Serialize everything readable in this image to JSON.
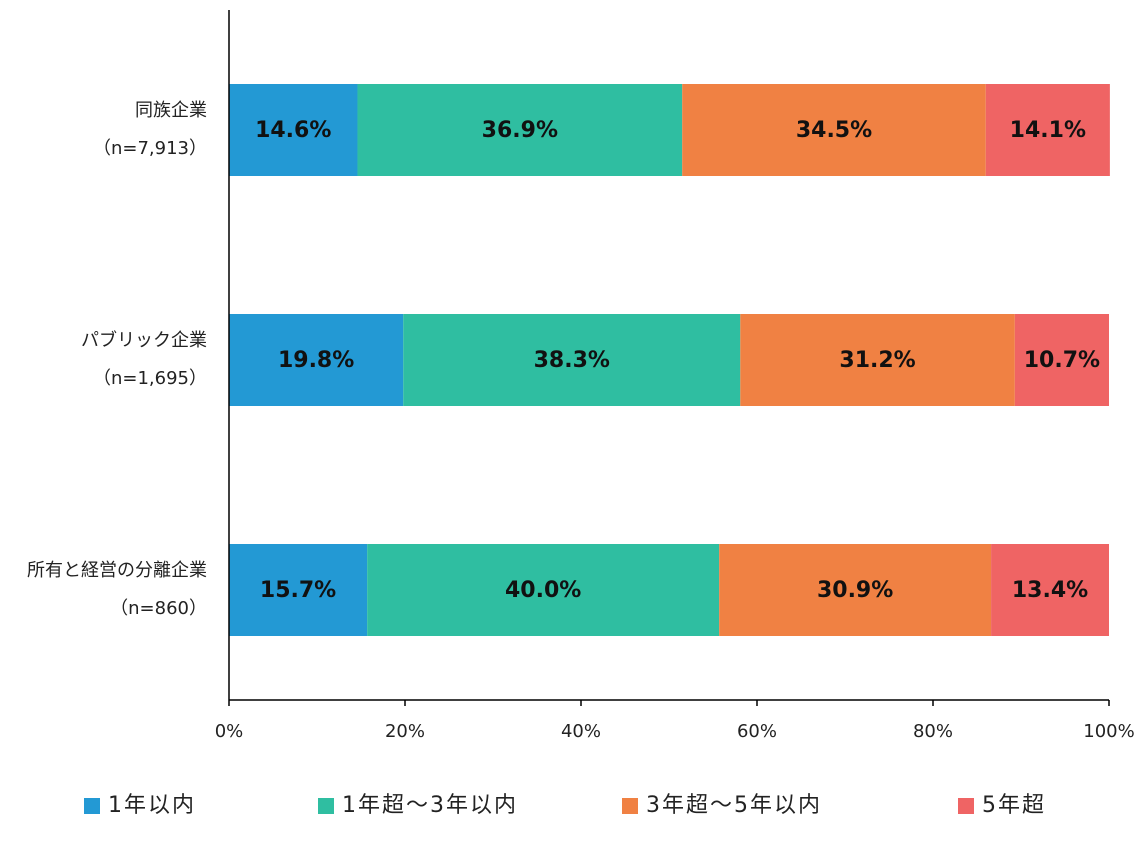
{
  "chart_data": {
    "type": "stacked-barh",
    "categories": [
      [
        "同族企業",
        "（n=7,913）"
      ],
      [
        "パブリック企業",
        "（n=1,695）"
      ],
      [
        "所有と経営の分離企業",
        "（n=860）"
      ]
    ],
    "series": [
      {
        "name": "1年以内",
        "color": "#2399d4",
        "values": [
          14.6,
          19.8,
          15.7
        ],
        "value_labels": [
          "14.6%",
          "19.8%",
          "15.7%"
        ]
      },
      {
        "name": "1年超～3年以内",
        "color": "#2fbea1",
        "values": [
          36.9,
          38.3,
          40.0
        ],
        "value_labels": [
          "36.9%",
          "38.3%",
          "40.0%"
        ]
      },
      {
        "name": "3年超～5年以内",
        "color": "#f08143",
        "values": [
          34.5,
          31.2,
          30.9
        ],
        "value_labels": [
          "34.5%",
          "31.2%",
          "30.9%"
        ]
      },
      {
        "name": "5年超",
        "color": "#ef6464",
        "values": [
          14.1,
          10.7,
          13.4
        ],
        "value_labels": [
          "14.1%",
          "10.7%",
          "13.4%"
        ]
      }
    ],
    "xlim": [
      0,
      100
    ],
    "xticks": [
      {
        "value": 0,
        "label": "0%"
      },
      {
        "value": 20,
        "label": "20%"
      },
      {
        "value": 40,
        "label": "40%"
      },
      {
        "value": 60,
        "label": "60%"
      },
      {
        "value": 80,
        "label": "80%"
      },
      {
        "value": 100,
        "label": "100%"
      }
    ],
    "legend": "bottom"
  }
}
